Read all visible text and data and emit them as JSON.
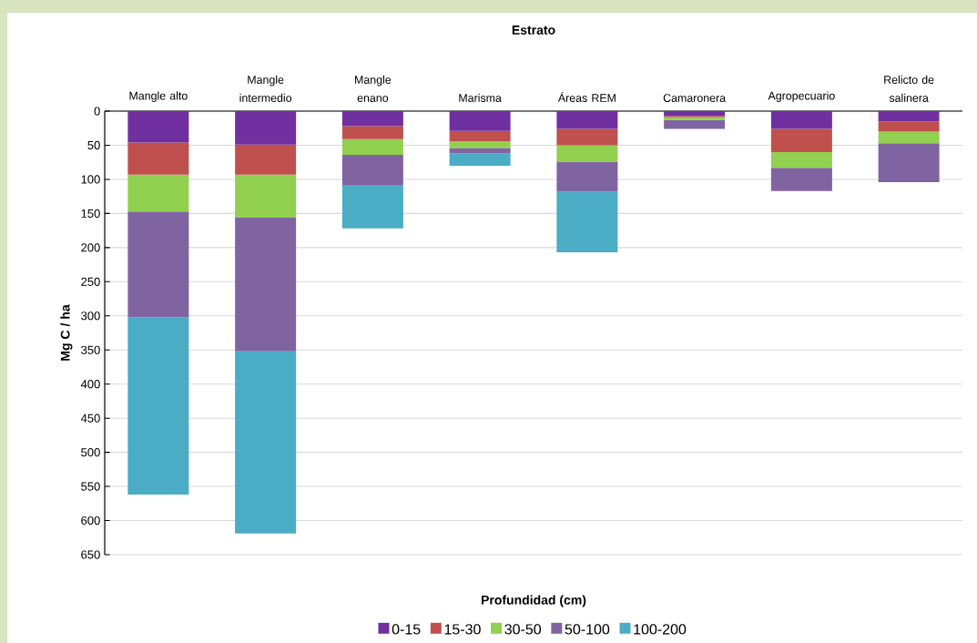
{
  "chart_data": {
    "type": "bar",
    "stacked": true,
    "title": "Estrato",
    "xlabel": "Profundidad (cm)",
    "ylabel": "Mg C / ha",
    "categories": [
      "Mangle alto",
      "Mangle intermedio",
      "Mangle enano",
      "Marisma",
      "Áreas REM",
      "Camaronera",
      "Agropecuario",
      "Relicto de salinera"
    ],
    "series": [
      {
        "name": "0-15",
        "color": "#7030a0",
        "values": [
          46,
          49,
          22,
          29,
          26,
          7,
          26,
          15
        ]
      },
      {
        "name": "15-30",
        "color": "#c0504d",
        "values": [
          47,
          44,
          19,
          15,
          24,
          2,
          34,
          15
        ]
      },
      {
        "name": "30-50",
        "color": "#92d050",
        "values": [
          54,
          63,
          23,
          10,
          24,
          4,
          23,
          17
        ]
      },
      {
        "name": "50-100",
        "color": "#8064a2",
        "values": [
          155,
          196,
          45,
          8,
          44,
          13,
          34,
          57
        ]
      },
      {
        "name": "100-200",
        "color": "#4bacc6",
        "values": [
          260,
          267,
          63,
          18,
          89,
          null,
          null,
          null
        ]
      }
    ],
    "ylim": [
      650,
      0
    ],
    "yticks": [
      0,
      50,
      100,
      150,
      200,
      250,
      300,
      350,
      400,
      450,
      500,
      550,
      600,
      650
    ],
    "grid": "y",
    "legend": "bottom"
  }
}
